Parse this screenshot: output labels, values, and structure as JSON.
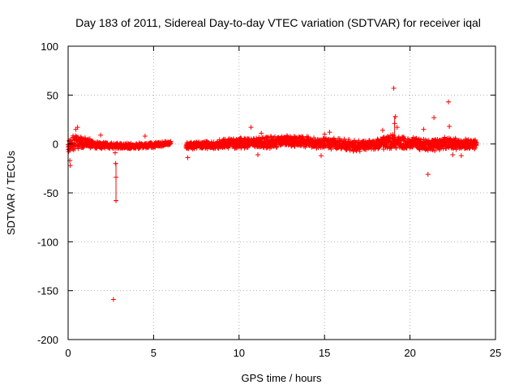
{
  "chart_data": {
    "type": "scatter",
    "title": "Day 183 of 2011, Sidereal Day-to-day VTEC variation (SDTVAR) for receiver iqal",
    "xlabel": "GPS time / hours",
    "ylabel": "SDTVAR / TECUs",
    "xlim": [
      0,
      25
    ],
    "ylim": [
      -200,
      100
    ],
    "xticks": [
      "0",
      "5",
      "10",
      "15",
      "20",
      "25"
    ],
    "yticks": [
      "100",
      "50",
      "0",
      "-50",
      "-100",
      "-150",
      "-200"
    ],
    "grid": true,
    "legend": "none",
    "color": "#ff0000",
    "marker": "plus",
    "band_segments": [
      {
        "x_start": 0.0,
        "x_end": 6.0,
        "center": [
          [
            0.0,
            -1
          ],
          [
            0.5,
            2
          ],
          [
            1.0,
            1
          ],
          [
            2.0,
            -1
          ],
          [
            3.0,
            -2
          ],
          [
            4.0,
            -2
          ],
          [
            5.0,
            -1
          ],
          [
            6.0,
            1
          ]
        ],
        "spread": [
          [
            0.0,
            10
          ],
          [
            0.5,
            8
          ],
          [
            1.0,
            6
          ],
          [
            2.0,
            4
          ],
          [
            3.0,
            3
          ],
          [
            4.0,
            3
          ],
          [
            5.0,
            3
          ],
          [
            6.0,
            2
          ]
        ]
      },
      {
        "x_start": 6.9,
        "x_end": 23.9,
        "center": [
          [
            6.9,
            -2
          ],
          [
            8.0,
            -1
          ],
          [
            9.0,
            0
          ],
          [
            10.0,
            1
          ],
          [
            11.0,
            1
          ],
          [
            12.0,
            2
          ],
          [
            13.0,
            3
          ],
          [
            14.0,
            2
          ],
          [
            15.0,
            1
          ],
          [
            16.0,
            0
          ],
          [
            17.0,
            -2
          ],
          [
            18.0,
            0
          ],
          [
            19.0,
            2
          ],
          [
            20.0,
            1
          ],
          [
            21.0,
            -1
          ],
          [
            22.0,
            0
          ],
          [
            23.0,
            0
          ],
          [
            23.9,
            0
          ]
        ],
        "spread": [
          [
            6.9,
            4
          ],
          [
            8.0,
            4
          ],
          [
            9.0,
            5
          ],
          [
            10.0,
            6
          ],
          [
            11.0,
            6
          ],
          [
            12.0,
            7
          ],
          [
            13.0,
            6
          ],
          [
            14.0,
            6
          ],
          [
            15.0,
            6
          ],
          [
            16.0,
            7
          ],
          [
            17.0,
            6
          ],
          [
            18.0,
            6
          ],
          [
            19.0,
            8
          ],
          [
            20.0,
            6
          ],
          [
            21.0,
            7
          ],
          [
            22.0,
            7
          ],
          [
            23.0,
            6
          ],
          [
            23.9,
            5
          ]
        ]
      }
    ],
    "outliers": [
      {
        "x": 2.65,
        "y": -159
      },
      {
        "x": 2.8,
        "y": -58
      },
      {
        "x": 2.8,
        "y": -34
      },
      {
        "x": 2.78,
        "y": -20
      },
      {
        "x": 2.75,
        "y": -9
      },
      {
        "x": 0.12,
        "y": -22
      },
      {
        "x": 0.1,
        "y": -17
      },
      {
        "x": 0.45,
        "y": 15
      },
      {
        "x": 0.55,
        "y": 17
      },
      {
        "x": 1.9,
        "y": 9
      },
      {
        "x": 4.5,
        "y": 8
      },
      {
        "x": 7.0,
        "y": -14
      },
      {
        "x": 10.7,
        "y": 17
      },
      {
        "x": 11.1,
        "y": -11
      },
      {
        "x": 11.3,
        "y": 11
      },
      {
        "x": 15.0,
        "y": 10
      },
      {
        "x": 15.3,
        "y": 12
      },
      {
        "x": 14.8,
        "y": -12
      },
      {
        "x": 18.4,
        "y": 14
      },
      {
        "x": 19.05,
        "y": 57
      },
      {
        "x": 19.15,
        "y": 28
      },
      {
        "x": 19.1,
        "y": 21
      },
      {
        "x": 19.25,
        "y": 17
      },
      {
        "x": 20.8,
        "y": 15
      },
      {
        "x": 21.05,
        "y": -31
      },
      {
        "x": 21.4,
        "y": 27
      },
      {
        "x": 22.25,
        "y": 43
      },
      {
        "x": 22.3,
        "y": 18
      },
      {
        "x": 22.5,
        "y": -11
      },
      {
        "x": 23.0,
        "y": -12
      }
    ],
    "error_bars": [
      {
        "x": 2.8,
        "low": -58,
        "high": -20
      },
      {
        "x": 19.1,
        "low": 8,
        "high": 28
      }
    ]
  }
}
